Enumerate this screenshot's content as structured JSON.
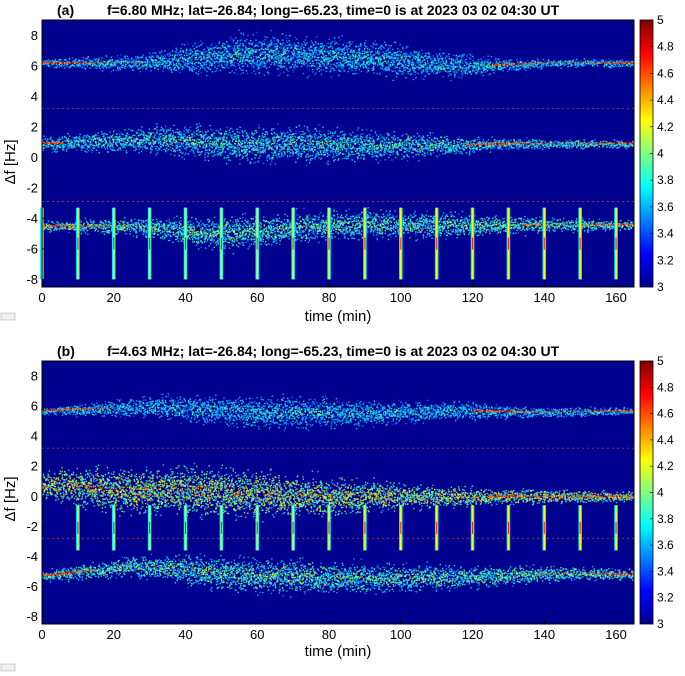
{
  "colorbar_icon": "export-icon",
  "chart_data": [
    {
      "type": "heatmap",
      "panel": "(a)",
      "title": "f=6.80 MHz;  lat=-26.84; long=-65.23, time=0 is at 2023 03 02 04:30 UT",
      "xlabel": "time (min)",
      "ylabel": "Δf [Hz]",
      "xlim": [
        0,
        165
      ],
      "ylim": [
        -8.5,
        9
      ],
      "xticks": [
        "0",
        "20",
        "40",
        "60",
        "80",
        "100",
        "120",
        "140",
        "160"
      ],
      "yticks": [
        "8",
        "6",
        "4",
        "2",
        "0",
        "-2",
        "-4",
        "-6",
        "-8"
      ],
      "colorbar": {
        "range": [
          3,
          5
        ],
        "ticks": [
          "5",
          "4.8",
          "4.6",
          "4.4",
          "4.2",
          "4",
          "3.8",
          "3.6",
          "3.4",
          "3.2",
          "3"
        ]
      },
      "background_color": "#00008f",
      "dashed_lines_y": [
        3.2,
        -2.9
      ],
      "bands": [
        {
          "name": "upper",
          "x": [
            0,
            28,
            55,
            90,
            115,
            130,
            145,
            165
          ],
          "center": [
            6.2,
            6.2,
            6.8,
            6.6,
            6.0,
            6.1,
            6.2,
            6.2
          ],
          "spread": [
            0.2,
            0.6,
            1.6,
            1.4,
            1.0,
            0.4,
            0.2,
            0.2
          ],
          "intensity": 0.45
        },
        {
          "name": "middle",
          "x": [
            0,
            30,
            60,
            90,
            110,
            130,
            165
          ],
          "center": [
            0.9,
            1.2,
            0.9,
            0.8,
            0.8,
            0.9,
            0.9
          ],
          "spread": [
            0.5,
            1.0,
            1.5,
            1.2,
            0.8,
            0.3,
            0.2
          ],
          "intensity": 0.5
        },
        {
          "name": "lower",
          "x": [
            0,
            25,
            50,
            80,
            110,
            140,
            165
          ],
          "center": [
            -4.5,
            -4.5,
            -5.0,
            -4.4,
            -4.4,
            -4.4,
            -4.4
          ],
          "spread": [
            0.3,
            0.6,
            1.3,
            1.1,
            1.0,
            0.5,
            0.3
          ],
          "intensity": 0.55
        }
      ],
      "spikes": {
        "x": [
          0,
          10,
          20,
          30,
          40,
          50,
          60,
          70,
          80,
          90,
          100,
          110,
          120,
          130,
          140,
          150,
          160
        ],
        "y_range": [
          -8,
          -3.3
        ]
      }
    },
    {
      "type": "heatmap",
      "panel": "(b)",
      "title": "f=4.63 MHz;  lat=-26.84; long=-65.23, time=0 is at 2023 03 02 04:30 UT",
      "xlabel": "time (min)",
      "ylabel": "Δf [Hz]",
      "xlim": [
        0,
        165
      ],
      "ylim": [
        -8.5,
        9
      ],
      "xticks": [
        "0",
        "20",
        "40",
        "60",
        "80",
        "100",
        "120",
        "140",
        "160"
      ],
      "yticks": [
        "8",
        "6",
        "4",
        "2",
        "0",
        "-2",
        "-4",
        "-6",
        "-8"
      ],
      "colorbar": {
        "range": [
          3,
          5
        ],
        "ticks": [
          "5",
          "4.8",
          "4.6",
          "4.4",
          "4.2",
          "4",
          "3.8",
          "3.6",
          "3.4",
          "3.2",
          "3"
        ]
      },
      "background_color": "#00008f",
      "dashed_lines_y": [
        3.2,
        -2.8
      ],
      "bands": [
        {
          "name": "upper",
          "x": [
            0,
            30,
            60,
            90,
            120,
            135,
            165
          ],
          "center": [
            5.7,
            6.0,
            5.6,
            5.6,
            5.7,
            5.6,
            5.7
          ],
          "spread": [
            0.2,
            0.8,
            1.3,
            1.0,
            0.6,
            0.3,
            0.2
          ],
          "intensity": 0.45
        },
        {
          "name": "middle",
          "x": [
            0,
            20,
            50,
            80,
            100,
            130,
            165
          ],
          "center": [
            0.8,
            0.5,
            0.3,
            0.0,
            0.0,
            0.0,
            0.0
          ],
          "spread": [
            1.0,
            1.8,
            2.0,
            1.5,
            1.0,
            0.5,
            0.3
          ],
          "intensity": 0.7
        },
        {
          "name": "lower",
          "x": [
            0,
            25,
            55,
            85,
            115,
            145,
            165
          ],
          "center": [
            -5.3,
            -4.6,
            -5.2,
            -5.4,
            -5.4,
            -5.1,
            -5.2
          ],
          "spread": [
            0.3,
            0.8,
            1.4,
            1.2,
            0.9,
            0.5,
            0.3
          ],
          "intensity": 0.55
        }
      ],
      "spikes": {
        "x": [
          10,
          20,
          30,
          40,
          50,
          60,
          70,
          80,
          90,
          100,
          110,
          120,
          130,
          140,
          150,
          160
        ],
        "y_range": [
          -3.6,
          -0.6
        ]
      }
    }
  ]
}
